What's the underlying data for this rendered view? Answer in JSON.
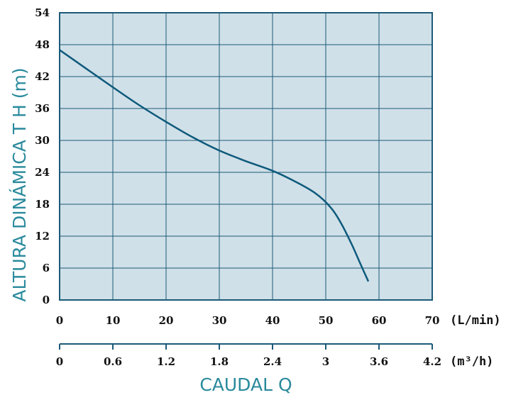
{
  "chart_data": {
    "type": "line",
    "ylabel": "ALTURA DINÁMICA T H (m)",
    "xlabel": "CAUDAL Q",
    "ylim": [
      0,
      54
    ],
    "xlim": [
      0,
      70
    ],
    "y_ticks": [
      "0",
      "6",
      "12",
      "18",
      "24",
      "30",
      "36",
      "42",
      "48",
      "54"
    ],
    "x_ticks_lmin": [
      "0",
      "10",
      "20",
      "30",
      "40",
      "50",
      "60",
      "70"
    ],
    "x_unit_lmin": "(L/min)",
    "x_ticks_m3h": [
      "0",
      "0.6",
      "1.2",
      "1.8",
      "2.4",
      "3",
      "3.6",
      "4.2"
    ],
    "x_unit_m3h": "(m³/h)",
    "grid": true,
    "series": [
      {
        "x": [
          0,
          5,
          10,
          15,
          20,
          25,
          30,
          35,
          40,
          44,
          48,
          51,
          53,
          55,
          56.5,
          58
        ],
        "y": [
          47,
          43.5,
          40,
          36.6,
          33.5,
          30.6,
          28.1,
          26.1,
          24.3,
          22.4,
          20.1,
          17.3,
          14.2,
          10.2,
          6.8,
          3.5
        ]
      }
    ],
    "colors": {
      "plot_background": "#d0e0e8",
      "grid": "#1c5a78",
      "curve": "#0e5a7c",
      "axis_title": "#2a8a9c",
      "tick_text": "#111111"
    }
  }
}
